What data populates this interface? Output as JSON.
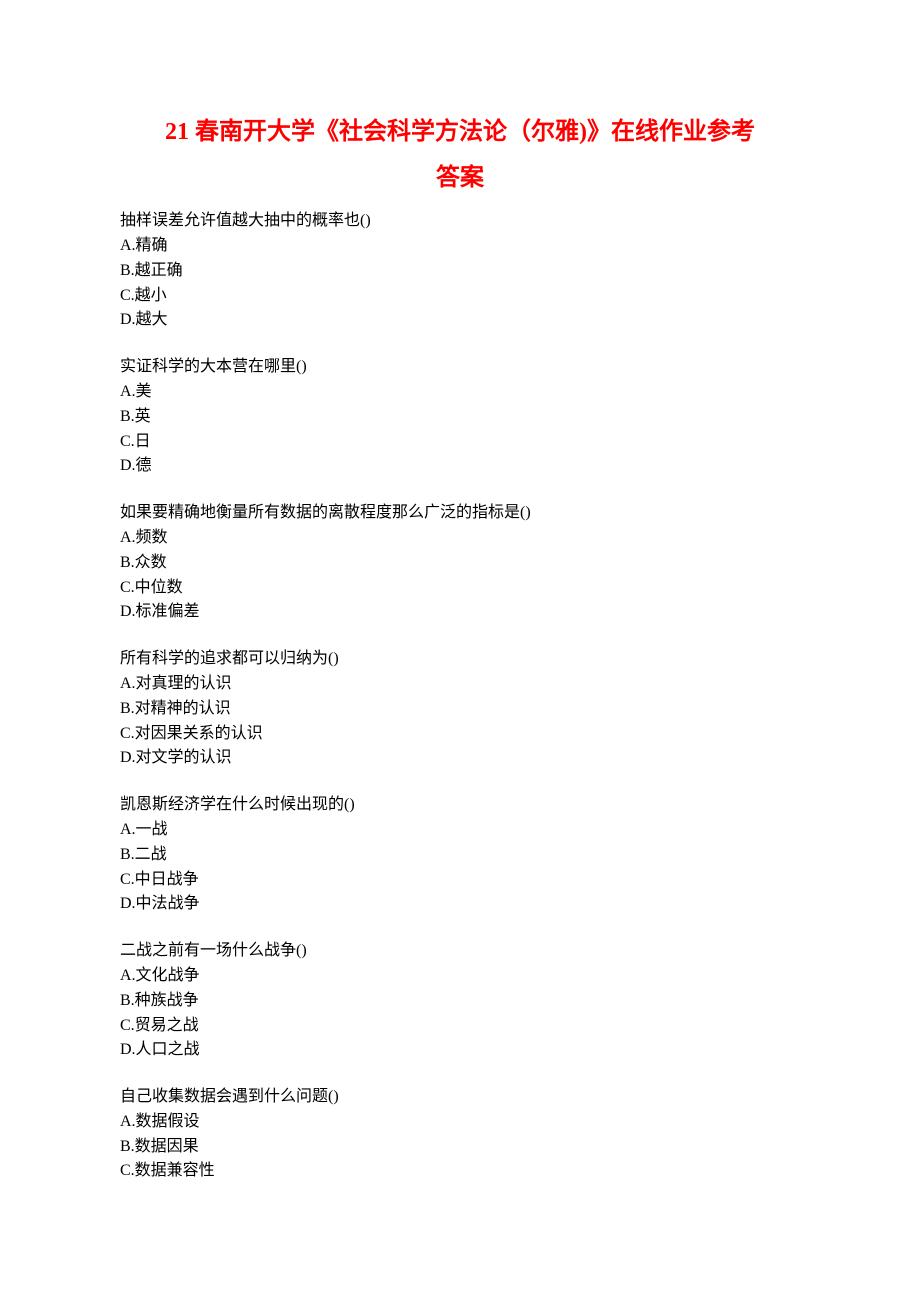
{
  "title_line1": "21 春南开大学《社会科学方法论（尔雅)》在线作业参考",
  "title_line2": "答案",
  "colors": {
    "title_color": "#ff0000",
    "text_color": "#000000",
    "background": "#ffffff"
  },
  "typography": {
    "title_fontsize": 24,
    "title_fontweight": "bold",
    "body_fontsize": 16,
    "font_family": "SimSun"
  },
  "questions": [
    {
      "stem": "抽样误差允许值越大抽中的概率也()",
      "A": "A.精确",
      "B": "B.越正确",
      "C": "C.越小",
      "D": "D.越大"
    },
    {
      "stem": "实证科学的大本营在哪里()",
      "A": "A.美",
      "B": "B.英",
      "C": "C.日",
      "D": "D.德"
    },
    {
      "stem": "如果要精确地衡量所有数据的离散程度那么广泛的指标是()",
      "A": "A.频数",
      "B": "B.众数",
      "C": "C.中位数",
      "D": "D.标准偏差"
    },
    {
      "stem": "所有科学的追求都可以归纳为()",
      "A": "A.对真理的认识",
      "B": "B.对精神的认识",
      "C": "C.对因果关系的认识",
      "D": "D.对文学的认识"
    },
    {
      "stem": "凯恩斯经济学在什么时候出现的()",
      "A": "A.一战",
      "B": "B.二战",
      "C": "C.中日战争",
      "D": "D.中法战争"
    },
    {
      "stem": "二战之前有一场什么战争()",
      "A": "A.文化战争",
      "B": "B.种族战争",
      "C": "C.贸易之战",
      "D": "D.人口之战"
    },
    {
      "stem": "自己收集数据会遇到什么问题()",
      "A": "A.数据假设",
      "B": "B.数据因果",
      "C": "C.数据兼容性"
    }
  ]
}
